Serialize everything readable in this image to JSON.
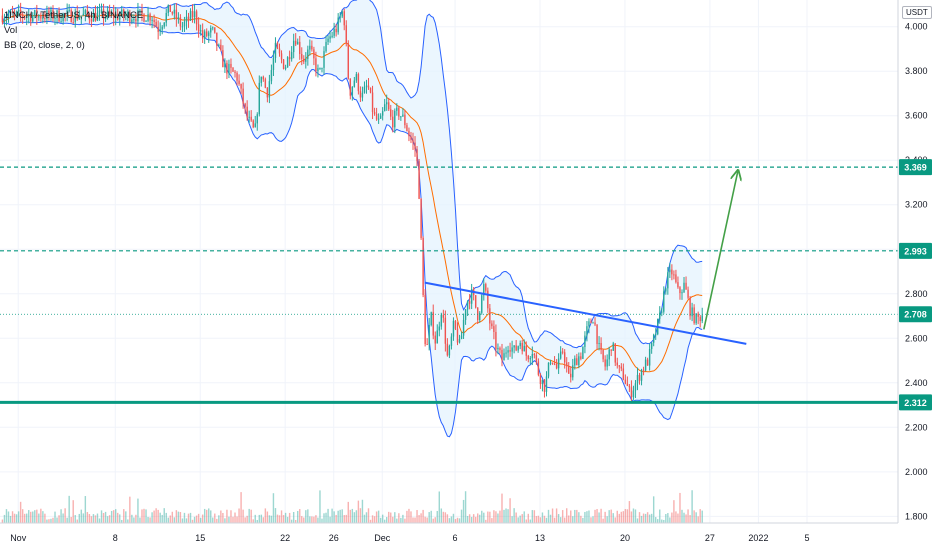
{
  "legend": {
    "symbol": "1INCH / TetherUS, 4h, BINANCE",
    "volume": "Vol",
    "indicator": "BB (20, close, 2, 0)"
  },
  "currency": "USDT",
  "colors": {
    "up": "#26a69a",
    "down": "#ef5350",
    "bb_band": "#2962ff",
    "bb_basis": "#ff6d00",
    "bb_fill": "#e3f2fd",
    "trendline": "#2962ff",
    "support": "#089981",
    "arrow": "#43a047",
    "level_line": "#089981",
    "price_badge": "#089981"
  },
  "chart_data": {
    "type": "candlestick",
    "symbol": "1INCH/USDT",
    "interval": "4h",
    "exchange": "BINANCE",
    "y_ticks": [
      "1.800",
      "2.000",
      "2.200",
      "2.400",
      "2.600",
      "2.800",
      "3.000",
      "3.200",
      "3.400",
      "3.600",
      "3.800",
      "4.000"
    ],
    "y_tick_values": [
      1.8,
      2.0,
      2.2,
      2.4,
      2.6,
      2.8,
      3.0,
      3.2,
      3.4,
      3.6,
      3.8,
      4.0
    ],
    "ylim": [
      1.77,
      4.12
    ],
    "x_ticks": [
      {
        "label": "Nov",
        "day": 0
      },
      {
        "label": "8",
        "day": 8
      },
      {
        "label": "15",
        "day": 15
      },
      {
        "label": "22",
        "day": 22
      },
      {
        "label": "26",
        "day": 26
      },
      {
        "label": "Dec",
        "day": 30
      },
      {
        "label": "6",
        "day": 36
      },
      {
        "label": "13",
        "day": 43
      },
      {
        "label": "20",
        "day": 50
      },
      {
        "label": "27",
        "day": 57
      },
      {
        "label": "2022",
        "day": 61
      },
      {
        "label": "5",
        "day": 65
      }
    ],
    "xlim_days": [
      -1.5,
      72.5
    ],
    "last_data_day": 56.5,
    "price_path": [
      [
        11.0,
        4.05
      ],
      [
        11.5,
        3.99
      ],
      [
        12.5,
        4.08
      ],
      [
        13.5,
        4.0
      ],
      [
        14.5,
        4.06
      ],
      [
        15.2,
        3.95
      ],
      [
        16.0,
        3.98
      ],
      [
        17.0,
        3.82
      ],
      [
        18.0,
        3.78
      ],
      [
        18.8,
        3.6
      ],
      [
        19.5,
        3.52
      ],
      [
        20.0,
        3.8
      ],
      [
        20.5,
        3.7
      ],
      [
        21.2,
        3.9
      ],
      [
        22.0,
        3.82
      ],
      [
        22.8,
        3.96
      ],
      [
        23.5,
        3.85
      ],
      [
        24.0,
        3.9
      ],
      [
        24.8,
        3.78
      ],
      [
        25.5,
        3.94
      ],
      [
        26.2,
        3.99
      ],
      [
        26.8,
        4.08
      ],
      [
        27.3,
        3.7
      ],
      [
        27.8,
        3.78
      ],
      [
        28.3,
        3.68
      ],
      [
        28.8,
        3.74
      ],
      [
        29.3,
        3.6
      ],
      [
        29.8,
        3.56
      ],
      [
        30.3,
        3.66
      ],
      [
        30.8,
        3.57
      ],
      [
        31.3,
        3.62
      ],
      [
        31.8,
        3.58
      ],
      [
        32.3,
        3.5
      ],
      [
        32.8,
        3.44
      ],
      [
        33.1,
        3.2
      ],
      [
        33.3,
        2.86
      ],
      [
        33.6,
        2.52
      ],
      [
        34.0,
        2.7
      ],
      [
        34.4,
        2.58
      ],
      [
        34.9,
        2.74
      ],
      [
        35.4,
        2.5
      ],
      [
        35.9,
        2.66
      ],
      [
        36.4,
        2.56
      ],
      [
        36.9,
        2.76
      ],
      [
        37.4,
        2.8
      ],
      [
        37.9,
        2.7
      ],
      [
        38.4,
        2.84
      ],
      [
        38.9,
        2.66
      ],
      [
        39.4,
        2.56
      ],
      [
        39.9,
        2.5
      ],
      [
        40.4,
        2.58
      ],
      [
        40.9,
        2.54
      ],
      [
        41.4,
        2.59
      ],
      [
        41.9,
        2.52
      ],
      [
        42.4,
        2.55
      ],
      [
        42.9,
        2.44
      ],
      [
        43.4,
        2.38
      ],
      [
        43.9,
        2.52
      ],
      [
        44.4,
        2.46
      ],
      [
        44.9,
        2.55
      ],
      [
        45.4,
        2.41
      ],
      [
        45.9,
        2.5
      ],
      [
        46.4,
        2.53
      ],
      [
        46.9,
        2.64
      ],
      [
        47.4,
        2.7
      ],
      [
        47.9,
        2.54
      ],
      [
        48.4,
        2.47
      ],
      [
        48.9,
        2.58
      ],
      [
        49.4,
        2.46
      ],
      [
        49.9,
        2.43
      ],
      [
        50.4,
        2.35
      ],
      [
        50.9,
        2.4
      ],
      [
        51.4,
        2.46
      ],
      [
        51.9,
        2.5
      ],
      [
        52.4,
        2.6
      ],
      [
        52.9,
        2.7
      ],
      [
        53.4,
        2.86
      ],
      [
        53.9,
        2.9
      ],
      [
        54.4,
        2.8
      ],
      [
        54.9,
        2.84
      ],
      [
        55.4,
        2.72
      ],
      [
        55.9,
        2.68
      ],
      [
        56.4,
        2.71
      ]
    ],
    "horizontal_levels": [
      {
        "label": "3.369",
        "value": 3.369,
        "style": "dashed"
      },
      {
        "label": "2.993",
        "value": 2.993,
        "style": "dashed"
      },
      {
        "label": "2.708",
        "value": 2.708,
        "style": "dotted",
        "current_price": true
      },
      {
        "label": "2.312",
        "value": 2.312,
        "style": "solid"
      }
    ],
    "trendline": {
      "from": [
        33.5,
        2.85
      ],
      "to": [
        60.0,
        2.575
      ]
    },
    "projection_arrow": {
      "from": [
        56.5,
        2.64
      ],
      "to": [
        59.3,
        3.35
      ]
    }
  }
}
